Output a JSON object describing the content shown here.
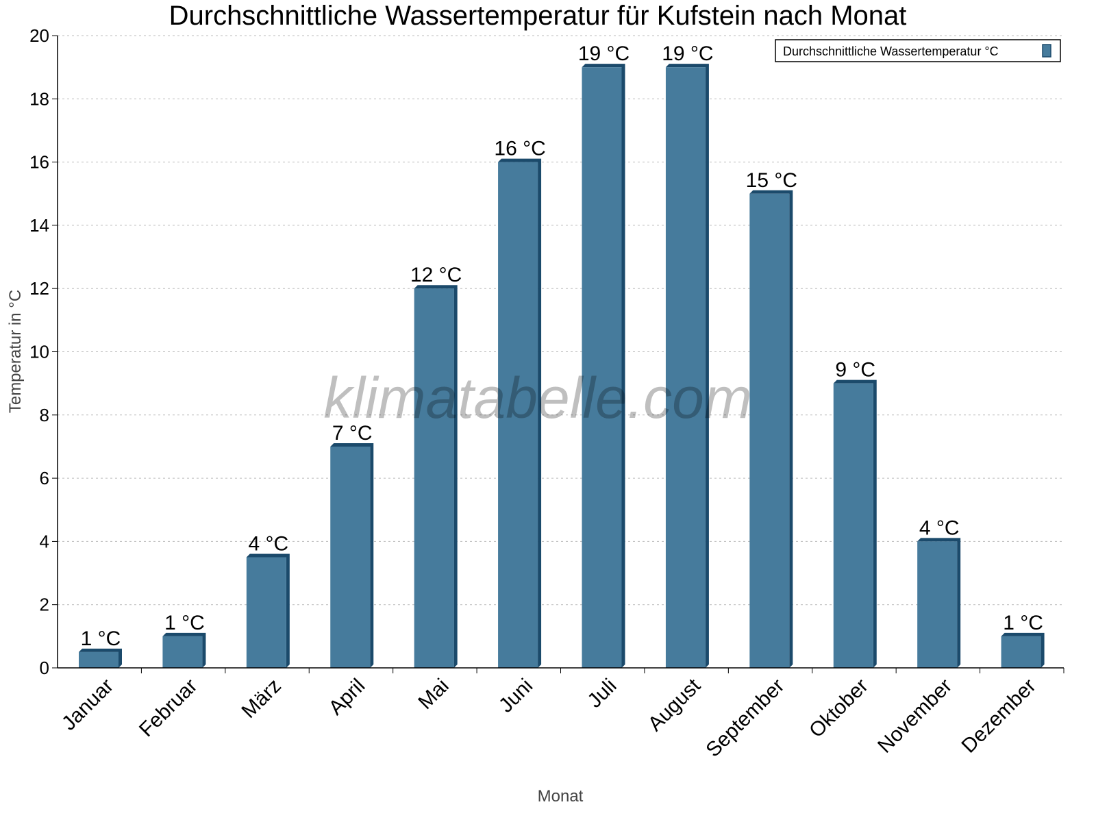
{
  "chart_data": {
    "type": "bar",
    "title": "Durchschnittliche Wassertemperatur für Kufstein nach Monat",
    "xlabel": "Monat",
    "ylabel": "Temperatur in °C",
    "categories": [
      "Januar",
      "Februar",
      "März",
      "April",
      "Mai",
      "Juni",
      "Juli",
      "August",
      "September",
      "Oktober",
      "November",
      "Dezember"
    ],
    "series": [
      {
        "name": "Durchschnittliche Wassertemperatur °C",
        "values": [
          0.5,
          1,
          3.5,
          7,
          12,
          16,
          19,
          19,
          15,
          9,
          4,
          1
        ],
        "labels": [
          "1 °C",
          "1 °C",
          "4 °C",
          "7 °C",
          "12 °C",
          "16 °C",
          "19 °C",
          "19 °C",
          "15 °C",
          "9 °C",
          "4 °C",
          "1 °C"
        ]
      }
    ],
    "ylim": [
      0,
      20
    ],
    "yticks": [
      0,
      2,
      4,
      6,
      8,
      10,
      12,
      14,
      16,
      18,
      20
    ],
    "grid": true,
    "legend_position": "top-right",
    "colors": {
      "bar": "#467b9c",
      "bar_side": "#1b4a6b"
    },
    "watermark": "klimatabelle.com"
  }
}
